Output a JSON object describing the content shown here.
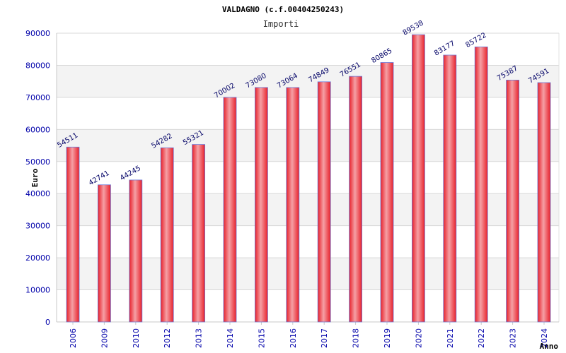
{
  "colors": {
    "bar_main": "#e8202a",
    "bar_highlight": "#f5a0a5",
    "bar_edge": "#6a78d8",
    "band": "#f3f3f3",
    "grid": "#d8d8d8",
    "tick_text": "#0000aa"
  },
  "chart_data": {
    "type": "bar",
    "title": "VALDAGNO (c.f.00404250243)",
    "subtitle": "Importi",
    "xlabel": "Anno",
    "ylabel": "Euro",
    "categories": [
      "2006",
      "2009",
      "2010",
      "2012",
      "2013",
      "2014",
      "2015",
      "2016",
      "2017",
      "2018",
      "2019",
      "2020",
      "2021",
      "2022",
      "2023",
      "2024"
    ],
    "values": [
      54511,
      42741,
      44245,
      54282,
      55321,
      70002,
      73080,
      73064,
      74849,
      76551,
      80865,
      89538,
      83177,
      85722,
      75387,
      74591
    ],
    "data_labels": [
      "54511",
      "42741",
      "44245",
      "54282",
      "55321",
      "70002",
      "73080",
      "73064",
      "74849",
      "76551",
      "80865",
      "89538",
      "83177",
      "85722",
      "75387",
      "74591"
    ],
    "ylim": [
      0,
      90000
    ],
    "yticks": [
      "0",
      "10000",
      "20000",
      "30000",
      "40000",
      "50000",
      "60000",
      "70000",
      "80000",
      "90000"
    ],
    "grid": true,
    "legend": "none"
  }
}
